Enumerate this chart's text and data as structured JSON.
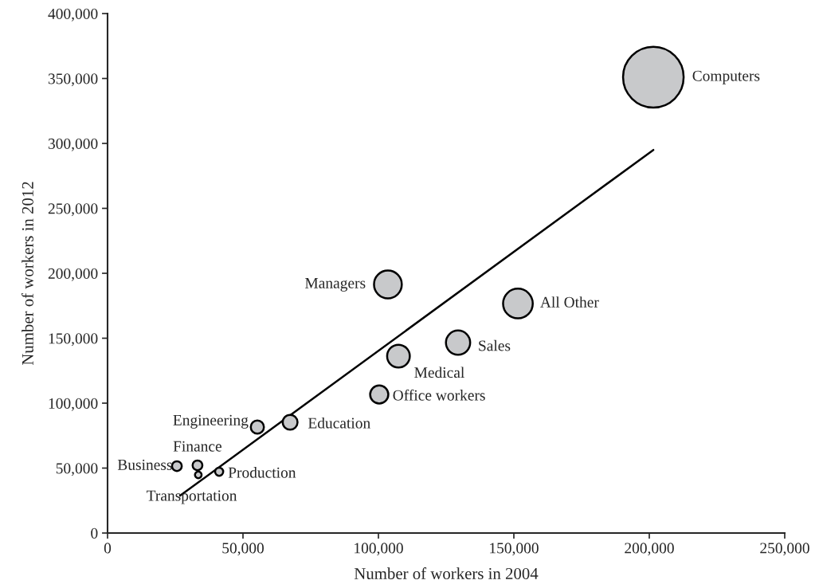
{
  "chart_data": {
    "type": "bubble",
    "xlabel": "Number of workers in 2004",
    "ylabel": "Number of workers in 2012",
    "xlim": [
      0,
      250000
    ],
    "ylim": [
      0,
      400000
    ],
    "xticks": [
      0,
      {
        "value": 50000,
        "label": "50,000"
      },
      {
        "value": 100000,
        "label": "100,000"
      },
      {
        "value": 150000,
        "label": "150,000"
      },
      {
        "value": 200000,
        "label": "200,000"
      },
      {
        "value": 250000,
        "label": "250,000"
      }
    ],
    "yticks": [
      0,
      {
        "value": 50000,
        "label": "50,000"
      },
      {
        "value": 100000,
        "label": "100,000"
      },
      {
        "value": 150000,
        "label": "150,000"
      },
      {
        "value": 200000,
        "label": "200,000"
      },
      {
        "value": 250000,
        "label": "250,000"
      },
      {
        "value": 300000,
        "label": "300,000"
      },
      {
        "value": 350000,
        "label": "350,000"
      },
      {
        "value": 400000,
        "label": "400,000"
      }
    ],
    "grid": false,
    "legend": false,
    "series": [
      {
        "color": "#c8c9cb",
        "x": [
          201500,
          103500,
          151500,
          129400,
          107400,
          100300,
          67400,
          55300,
          33200,
          25600,
          33500,
          41200
        ],
        "values": [
          351000,
          191400,
          176700,
          146600,
          136200,
          106700,
          85300,
          81600,
          52100,
          51500,
          44800,
          47200
        ],
        "sizes": [
          1,
          0.21,
          0.24,
          0.16,
          0.14,
          0.09,
          0.06,
          0.047,
          0.026,
          0.026,
          0.012,
          0.018
        ]
      },
      {
        "type": "line",
        "color": "#000000",
        "x": [
          26800,
          201500
        ],
        "values": [
          28800,
          295000
        ]
      }
    ],
    "annotations": [
      {
        "text": "Computers",
        "x": 201500,
        "y": 351000
      },
      {
        "text": "Managers",
        "x": 103500,
        "y": 191400
      },
      {
        "text": "All Other",
        "x": 151500,
        "y": 176700
      },
      {
        "text": "Sales",
        "x": 129400,
        "y": 146600
      },
      {
        "text": "Medical",
        "x": 107400,
        "y": 136200
      },
      {
        "text": "Office workers",
        "x": 100300,
        "y": 106700
      },
      {
        "text": "Education",
        "x": 67400,
        "y": 85300
      },
      {
        "text": "Engineering",
        "x": 55300,
        "y": 81600
      },
      {
        "text": "Finance",
        "x": 33200,
        "y": 52100
      },
      {
        "text": "Business",
        "x": 25600,
        "y": 51500
      },
      {
        "text": "Transportation",
        "x": 33500,
        "y": 44800
      },
      {
        "text": "Production",
        "x": 41200,
        "y": 47200
      }
    ]
  }
}
